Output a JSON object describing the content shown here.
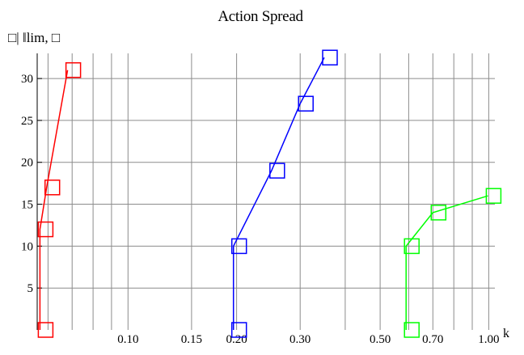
{
  "chart_data": {
    "type": "line",
    "title": "Action Spread",
    "ylabel": "□| ǁlim, □",
    "xlabel": "k",
    "x_scale": "log",
    "xlim": [
      0.056,
      1.04
    ],
    "ylim": [
      0,
      33
    ],
    "x_ticks": [
      {
        "value": 0.1,
        "label": "0.10"
      },
      {
        "value": 0.15,
        "label": "0.15"
      },
      {
        "value": 0.2,
        "label": "0.20"
      },
      {
        "value": 0.3,
        "label": "0.30"
      },
      {
        "value": 0.5,
        "label": "0.50"
      },
      {
        "value": 0.7,
        "label": "0.70"
      },
      {
        "value": 1.0,
        "label": "1.00"
      }
    ],
    "x_grid": [
      0.06,
      0.07,
      0.08,
      0.09,
      0.1,
      0.15,
      0.2,
      0.3,
      0.4,
      0.5,
      0.6,
      0.7,
      0.8,
      0.9,
      1.0
    ],
    "y_ticks": [
      5,
      10,
      15,
      20,
      25,
      30
    ],
    "y_grid": [
      5,
      10,
      15,
      20,
      25,
      30
    ],
    "series": [
      {
        "color": "#ff0000",
        "points": [
          {
            "x": 0.057,
            "y": 0
          },
          {
            "x": 0.057,
            "y": 12
          },
          {
            "x": 0.0595,
            "y": 17
          },
          {
            "x": 0.068,
            "y": 31
          }
        ]
      },
      {
        "color": "#0000ff",
        "points": [
          {
            "x": 0.196,
            "y": 0
          },
          {
            "x": 0.196,
            "y": 10
          },
          {
            "x": 0.25,
            "y": 19
          },
          {
            "x": 0.3,
            "y": 27
          },
          {
            "x": 0.35,
            "y": 32.5
          }
        ]
      },
      {
        "color": "#00ff00",
        "points": [
          {
            "x": 0.59,
            "y": 0
          },
          {
            "x": 0.59,
            "y": 10
          },
          {
            "x": 0.7,
            "y": 14
          },
          {
            "x": 0.995,
            "y": 16
          }
        ]
      }
    ]
  }
}
